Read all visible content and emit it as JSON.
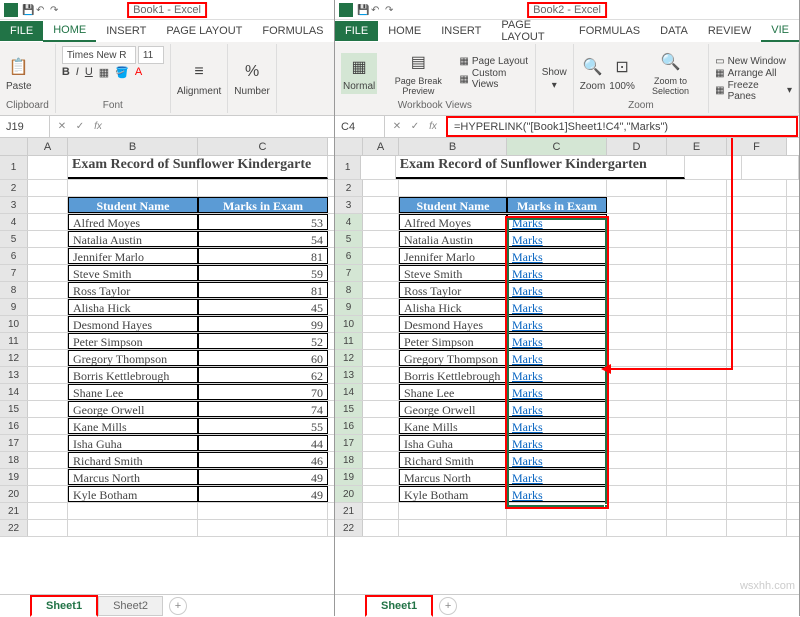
{
  "left": {
    "title": "Book1 - Excel",
    "tabs": [
      "FILE",
      "HOME",
      "INSERT",
      "PAGE LAYOUT",
      "FORMULAS"
    ],
    "active_tab": "HOME",
    "ribbon": {
      "font_name": "Times New R",
      "font_size": "11",
      "clipboard_label": "Clipboard",
      "paste_label": "Paste",
      "font_label": "Font",
      "alignment_label": "Alignment",
      "number_label": "Number"
    },
    "namebox": "J19",
    "formula": "",
    "cols": {
      "A": 40,
      "B": 130,
      "C": 130
    },
    "title_text": "Exam Record of Sunflower Kindergarte",
    "header": {
      "b": "Student Name",
      "c": "Marks in Exam"
    },
    "data": [
      {
        "name": "Alfred Moyes",
        "mark": "53"
      },
      {
        "name": "Natalia Austin",
        "mark": "54"
      },
      {
        "name": "Jennifer Marlo",
        "mark": "81"
      },
      {
        "name": "Steve Smith",
        "mark": "59"
      },
      {
        "name": "Ross Taylor",
        "mark": "81"
      },
      {
        "name": "Alisha Hick",
        "mark": "45"
      },
      {
        "name": "Desmond Hayes",
        "mark": "99"
      },
      {
        "name": "Peter Simpson",
        "mark": "52"
      },
      {
        "name": "Gregory Thompson",
        "mark": "60"
      },
      {
        "name": "Borris Kettlebrough",
        "mark": "62"
      },
      {
        "name": "Shane Lee",
        "mark": "70"
      },
      {
        "name": "George Orwell",
        "mark": "74"
      },
      {
        "name": "Kane Mills",
        "mark": "55"
      },
      {
        "name": "Isha Guha",
        "mark": "44"
      },
      {
        "name": "Richard Smith",
        "mark": "46"
      },
      {
        "name": "Marcus North",
        "mark": "49"
      },
      {
        "name": "Kyle Botham",
        "mark": "49"
      }
    ],
    "sheets": [
      "Sheet1",
      "Sheet2"
    ],
    "active_sheet": "Sheet1"
  },
  "right": {
    "title": "Book2 - Excel",
    "tabs": [
      "FILE",
      "HOME",
      "INSERT",
      "PAGE LAYOUT",
      "FORMULAS",
      "DATA",
      "REVIEW",
      "VIE"
    ],
    "active_tab": "VIE",
    "ribbon": {
      "normal_label": "Normal",
      "pagebreak_label": "Page Break Preview",
      "pagelayout_label": "Page Layout",
      "custom_label": "Custom Views",
      "views_label": "Workbook Views",
      "show_label": "Show",
      "zoom_label": "Zoom",
      "hundred_label": "100%",
      "zoomsel_label": "Zoom to Selection",
      "newwin_label": "New Window",
      "arrange_label": "Arrange All",
      "freeze_label": "Freeze Panes"
    },
    "namebox": "C4",
    "formula": "=HYPERLINK(\"[Book1]Sheet1!C4\",\"Marks\")",
    "cols": {
      "A": 36,
      "B": 108,
      "C": 100,
      "D": 60,
      "E": 60,
      "F": 60
    },
    "title_text": "Exam Record of Sunflower Kindergarten",
    "header": {
      "b": "Student Name",
      "c": "Marks in Exam"
    },
    "link_text": "Marks",
    "data": [
      {
        "name": "Alfred Moyes"
      },
      {
        "name": "Natalia Austin"
      },
      {
        "name": "Jennifer Marlo"
      },
      {
        "name": "Steve Smith"
      },
      {
        "name": "Ross Taylor"
      },
      {
        "name": "Alisha Hick"
      },
      {
        "name": "Desmond Hayes"
      },
      {
        "name": "Peter Simpson"
      },
      {
        "name": "Gregory Thompson"
      },
      {
        "name": "Borris Kettlebrough"
      },
      {
        "name": "Shane Lee"
      },
      {
        "name": "George Orwell"
      },
      {
        "name": "Kane Mills"
      },
      {
        "name": "Isha Guha"
      },
      {
        "name": "Richard Smith"
      },
      {
        "name": "Marcus North"
      },
      {
        "name": "Kyle Botham"
      }
    ],
    "sheets": [
      "Sheet1"
    ],
    "active_sheet": "Sheet1"
  },
  "colors": {
    "accent": "#217346",
    "header_fill": "#5b9bd5",
    "red": "#ff0000",
    "link": "#0563c1"
  },
  "watermark": "wsxhh.com"
}
